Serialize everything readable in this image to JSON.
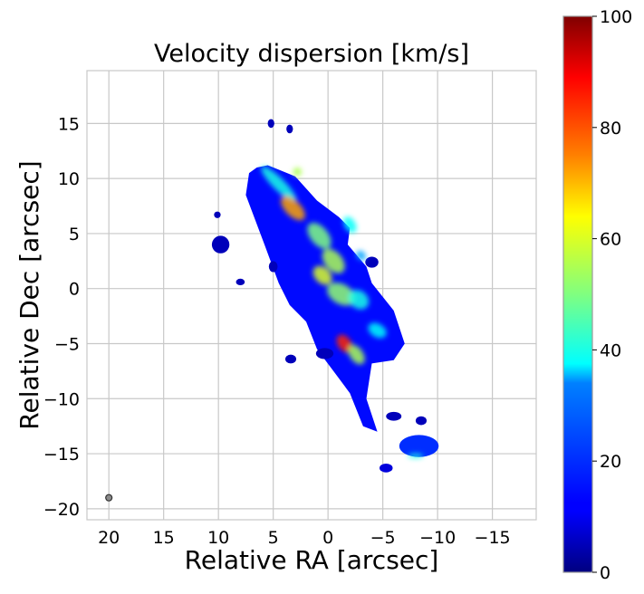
{
  "chart_data": {
    "type": "heatmap",
    "title": "Velocity dispersion [km/s]",
    "xlabel": "Relative RA [arcsec]",
    "ylabel": "Relative Dec [arcsec]",
    "xlim": [
      22,
      -19
    ],
    "ylim": [
      -21,
      19.8
    ],
    "xticks": [
      20,
      15,
      10,
      5,
      0,
      -5,
      -10,
      -15
    ],
    "xtick_labels": [
      "20",
      "15",
      "10",
      "5",
      "0",
      "−5",
      "−10",
      "−15"
    ],
    "yticks": [
      15,
      10,
      5,
      0,
      -5,
      -10,
      -15,
      -20
    ],
    "ytick_labels": [
      "15",
      "10",
      "5",
      "0",
      "−5",
      "−10",
      "−15",
      "−20"
    ],
    "grid": true,
    "colormap": "jet",
    "colorbar": {
      "min": 0,
      "max": 100,
      "ticks": [
        0,
        20,
        40,
        60,
        80,
        100
      ],
      "tick_labels": [
        "0",
        "20",
        "40",
        "60",
        "80",
        "100"
      ]
    },
    "beam": {
      "x": 20,
      "y": -19,
      "label": "beam"
    },
    "emission_outline": [
      [
        7.2,
        10.5
      ],
      [
        6.5,
        11.0
      ],
      [
        5.5,
        11.2
      ],
      [
        4.5,
        10.8
      ],
      [
        3.0,
        10.2
      ],
      [
        1.0,
        8.0
      ],
      [
        -1.0,
        6.5
      ],
      [
        -2.0,
        5.5
      ],
      [
        -1.8,
        4.0
      ],
      [
        -3.5,
        2.0
      ],
      [
        -4.0,
        0.5
      ],
      [
        -6.0,
        -2.0
      ],
      [
        -7.0,
        -5.0
      ],
      [
        -6.0,
        -6.5
      ],
      [
        -4.0,
        -6.8
      ],
      [
        -3.5,
        -10.0
      ],
      [
        -4.5,
        -13.0
      ],
      [
        -3.2,
        -12.5
      ],
      [
        -2.0,
        -9.5
      ],
      [
        -0.5,
        -7.5
      ],
      [
        1.0,
        -5.5
      ],
      [
        2.0,
        -3.0
      ],
      [
        3.5,
        -1.5
      ],
      [
        4.5,
        0.5
      ],
      [
        5.8,
        4.0
      ],
      [
        7.5,
        8.5
      ]
    ],
    "emission_islands": [
      [
        -8.3,
        -14.3,
        1.8,
        1.0,
        20
      ],
      [
        -5.3,
        -16.3,
        0.6,
        0.4,
        8
      ],
      [
        -6.0,
        -11.6,
        0.7,
        0.4,
        5
      ],
      [
        -8.5,
        -12.0,
        0.5,
        0.4,
        5
      ],
      [
        9.8,
        4.0,
        0.8,
        0.8,
        5
      ],
      [
        5.0,
        2.0,
        0.4,
        0.5,
        5
      ],
      [
        8.0,
        0.6,
        0.4,
        0.3,
        5
      ],
      [
        3.4,
        -6.4,
        0.5,
        0.4,
        5
      ],
      [
        0.3,
        -5.9,
        0.8,
        0.5,
        5
      ],
      [
        -4.0,
        2.4,
        0.6,
        0.5,
        5
      ],
      [
        5.2,
        15.0,
        0.3,
        0.4,
        5
      ],
      [
        3.5,
        14.5,
        0.3,
        0.4,
        5
      ],
      [
        10.1,
        6.7,
        0.3,
        0.3,
        5
      ]
    ],
    "dispersion_features": [
      [
        4.5,
        9.5,
        2.2,
        0.55,
        45,
        40
      ],
      [
        3.2,
        7.3,
        1.4,
        0.7,
        45,
        72
      ],
      [
        0.8,
        4.8,
        1.4,
        0.8,
        50,
        50
      ],
      [
        -0.5,
        2.5,
        1.3,
        0.8,
        50,
        55
      ],
      [
        0.5,
        1.2,
        1.0,
        0.7,
        45,
        60
      ],
      [
        -1.2,
        -0.5,
        1.4,
        0.9,
        30,
        52
      ],
      [
        -2.8,
        -1.0,
        1.0,
        0.8,
        40,
        40
      ],
      [
        -4.5,
        -3.8,
        0.9,
        0.6,
        30,
        38
      ],
      [
        -1.5,
        -5.0,
        0.9,
        0.6,
        55,
        85
      ],
      [
        -2.6,
        -6.0,
        1.0,
        0.6,
        55,
        55
      ],
      [
        -2.0,
        5.8,
        0.8,
        0.5,
        60,
        38
      ],
      [
        -3.0,
        3.0,
        0.5,
        0.4,
        45,
        35
      ],
      [
        -8.0,
        -15.2,
        0.7,
        0.2,
        0,
        40
      ],
      [
        2.8,
        10.6,
        0.4,
        0.4,
        0,
        55
      ]
    ]
  }
}
